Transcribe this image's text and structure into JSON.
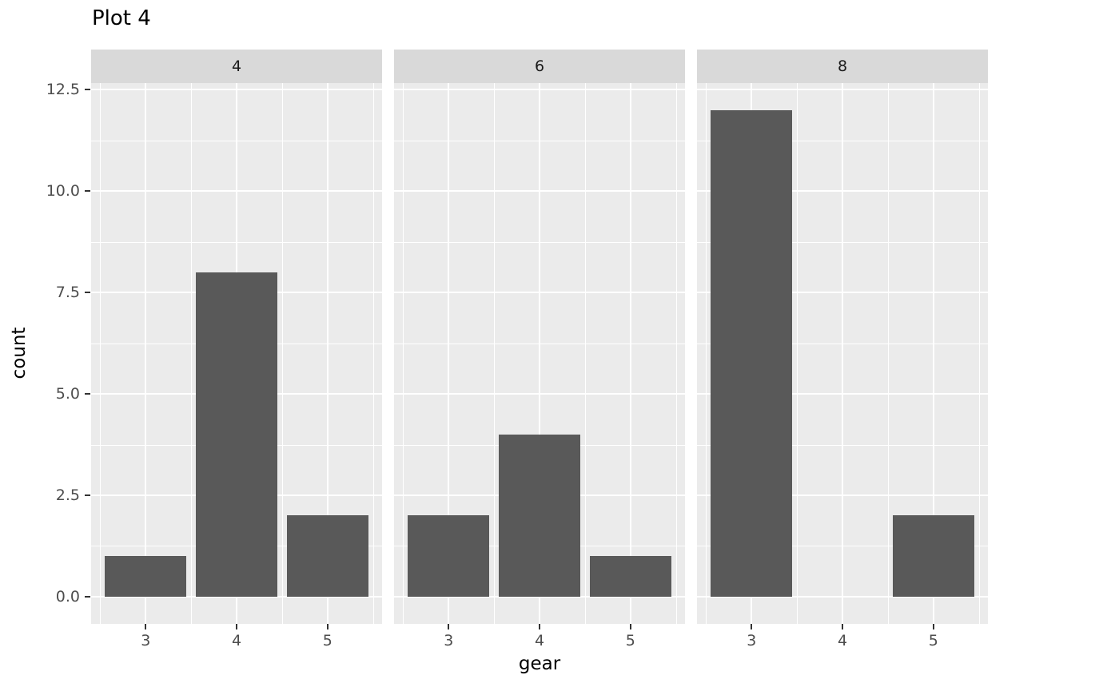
{
  "figure": {
    "title": "Plot 4"
  },
  "chart_data": {
    "type": "bar",
    "title": "Plot 4",
    "xlabel": "gear",
    "ylabel": "count",
    "facet_labels": [
      "4",
      "6",
      "8"
    ],
    "categories": [
      "3",
      "4",
      "5"
    ],
    "series": [
      {
        "name": "4",
        "values": [
          1,
          8,
          2
        ]
      },
      {
        "name": "6",
        "values": [
          2,
          4,
          1
        ]
      },
      {
        "name": "8",
        "values": [
          12,
          0,
          2
        ]
      }
    ],
    "y_ticks": [
      {
        "value": 0,
        "label": "0.0"
      },
      {
        "value": 2.5,
        "label": "2.5"
      },
      {
        "value": 5,
        "label": "5.0"
      },
      {
        "value": 7.5,
        "label": "7.5"
      },
      {
        "value": 10,
        "label": "10.0"
      },
      {
        "value": 12.5,
        "label": "12.5"
      }
    ],
    "y_minor_ticks": [
      1.25,
      3.75,
      6.25,
      8.75,
      11.25
    ],
    "ylim": [
      -0.67,
      12.66
    ],
    "bar_width": 0.9,
    "x_expansion": 0.6,
    "grid": "white major and minor gridlines on gray panel",
    "legend": "none"
  },
  "colors": {
    "bar": "#595959",
    "panel_bg": "#EBEBEB",
    "strip_bg": "#D9D9D9",
    "strip_text": "#1A1A1A",
    "grid": "#FFFFFF",
    "tick_label": "#4D4D4D",
    "tick_mark": "#333333",
    "title_text": "#000000",
    "background": "#FFFFFF"
  }
}
